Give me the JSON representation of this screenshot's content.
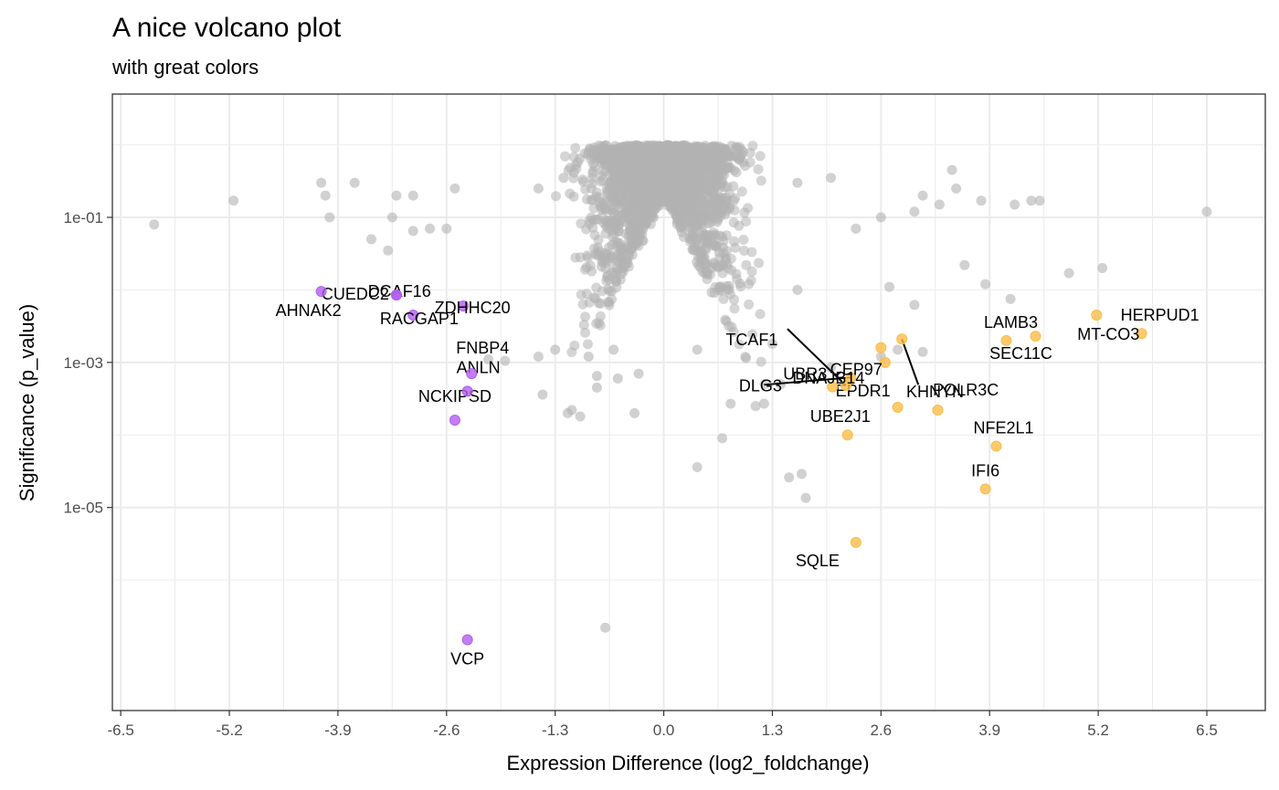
{
  "chart_data": {
    "type": "scatter",
    "title": "A nice volcano plot",
    "subtitle": "with great colors",
    "xlabel": "Expression Difference (log2_foldchange)",
    "ylabel": "Significance (p_value)",
    "xlim": [
      -6.6,
      7.2
    ],
    "ylim_log10": [
      -7.8,
      0.7
    ],
    "y_scale": "reverse-log10",
    "grid": true,
    "x_ticks": [
      -6.5,
      -5.2,
      -3.9,
      -2.6,
      -1.3,
      0.0,
      1.3,
      2.6,
      3.9,
      5.2,
      6.5
    ],
    "x_tick_labels": [
      "-6.5",
      "-5.2",
      "-3.9",
      "-2.6",
      "-1.3",
      "0.0",
      "1.3",
      "2.6",
      "3.9",
      "5.2",
      "6.5"
    ],
    "y_ticks": [
      1e-05,
      0.001,
      0.1
    ],
    "y_tick_labels": [
      "1e-05",
      "1e-03",
      "1e-01"
    ],
    "colors": {
      "up": "#fbbd48",
      "down": "#b45ef0",
      "neutral": "#b3b3b3",
      "panel_border": "#333333",
      "grid": "#ebebeb"
    },
    "highlighted_down": [
      {
        "gene": "VCP",
        "x": -2.35,
        "p": 1.5e-07
      },
      {
        "gene": "NCKIPSD",
        "x": -2.5,
        "p": 0.00016
      },
      {
        "gene": "ANLN",
        "x": -2.35,
        "p": 0.0004
      },
      {
        "gene": "FNBP4",
        "x": -2.3,
        "p": 0.0007
      },
      {
        "gene": "DCAF16",
        "x": -3.0,
        "p": 0.0045
      },
      {
        "gene": "ZDHHC20",
        "x": -2.4,
        "p": 0.006
      },
      {
        "gene": "CUEDC2",
        "x": -3.2,
        "p": 0.0085
      },
      {
        "gene": "RACGAP1",
        "x": -3.2,
        "p": 0.0085
      },
      {
        "gene": "AHNAK2",
        "x": -4.1,
        "p": 0.0095
      }
    ],
    "highlighted_up": [
      {
        "gene": "SQLE",
        "x": 2.3,
        "p": 3.3e-06
      },
      {
        "gene": "IFI6",
        "x": 3.85,
        "p": 1.8e-05
      },
      {
        "gene": "NFE2L1",
        "x": 3.98,
        "p": 7e-05
      },
      {
        "gene": "UBE2J1",
        "x": 2.2,
        "p": 0.0001
      },
      {
        "gene": "EPDR1",
        "x": 2.8,
        "p": 0.00024
      },
      {
        "gene": "KHNYN",
        "x": 3.28,
        "p": 0.00022
      },
      {
        "gene": "UBR3",
        "x": 2.02,
        "p": 0.00046
      },
      {
        "gene": "TCAF1",
        "x": 2.18,
        "p": 0.00048
      },
      {
        "gene": "DLG3",
        "x": 2.24,
        "p": 0.00062
      },
      {
        "gene": "DNAJB14",
        "x": 2.65,
        "p": 0.001
      },
      {
        "gene": "CEP97",
        "x": 2.6,
        "p": 0.0016
      },
      {
        "gene": "POLR3C",
        "x": 2.85,
        "p": 0.0021
      },
      {
        "gene": "LAMB3",
        "x": 4.1,
        "p": 0.002
      },
      {
        "gene": "SEC11C",
        "x": 4.45,
        "p": 0.0023
      },
      {
        "gene": "HERPUD1",
        "x": 5.72,
        "p": 0.0025
      },
      {
        "gene": "MT-CO3",
        "x": 5.18,
        "p": 0.0045
      }
    ],
    "neutral_points": [
      [
        -0.7,
        2.2e-07
      ],
      [
        1.7,
        1.35e-05
      ],
      [
        1.5,
        2.6e-05
      ],
      [
        1.65,
        2.9e-05
      ],
      [
        0.4,
        3.6e-05
      ],
      [
        0.7,
        9e-05
      ],
      [
        1.1,
        0.00025
      ],
      [
        1.2,
        0.00027
      ],
      [
        0.8,
        0.00027
      ],
      [
        -1.0,
        0.00018
      ],
      [
        -1.15,
        0.0002
      ],
      [
        -0.35,
        0.0002
      ],
      [
        -1.1,
        0.00022
      ],
      [
        -1.45,
        0.00036
      ],
      [
        -0.8,
        0.00045
      ],
      [
        1.4,
        0.0005
      ],
      [
        -0.8,
        0.00065
      ],
      [
        -0.3,
        0.0007
      ],
      [
        -0.55,
        0.0006
      ],
      [
        -2.1,
        0.0011
      ],
      [
        -1.9,
        0.00105
      ],
      [
        -0.9,
        0.0012
      ],
      [
        -1.5,
        0.0012
      ],
      [
        -1.3,
        0.0015
      ],
      [
        -0.6,
        0.0015
      ],
      [
        2.0,
        0.00085
      ],
      [
        2.6,
        0.0012
      ],
      [
        2.8,
        0.0015
      ],
      [
        3.1,
        0.0014
      ],
      [
        1.3,
        0.0018
      ],
      [
        0.4,
        0.0015
      ],
      [
        4.15,
        0.0075
      ],
      [
        3.0,
        0.0062
      ],
      [
        1.6,
        0.01
      ],
      [
        4.85,
        0.017
      ],
      [
        5.25,
        0.02
      ],
      [
        3.85,
        0.012
      ],
      [
        3.6,
        0.022
      ],
      [
        2.7,
        0.011
      ],
      [
        -4.0,
        0.1
      ],
      [
        -3.5,
        0.05
      ],
      [
        -3.3,
        0.035
      ],
      [
        -5.15,
        0.17
      ],
      [
        -6.1,
        0.08
      ],
      [
        6.5,
        0.12
      ],
      [
        -4.05,
        0.2
      ],
      [
        -3.7,
        0.3
      ],
      [
        -4.1,
        0.3
      ],
      [
        -3.0,
        0.065
      ],
      [
        -2.8,
        0.07
      ],
      [
        -2.6,
        0.07
      ],
      [
        -3.25,
        0.1
      ],
      [
        -3.2,
        0.2
      ],
      [
        -2.5,
        0.25
      ],
      [
        -3.0,
        0.2
      ],
      [
        2.3,
        0.07
      ],
      [
        2.6,
        0.1
      ],
      [
        3.0,
        0.12
      ],
      [
        3.3,
        0.15
      ],
      [
        3.1,
        0.2
      ],
      [
        3.5,
        0.25
      ],
      [
        3.45,
        0.45
      ],
      [
        4.2,
        0.15
      ],
      [
        4.4,
        0.17
      ],
      [
        4.5,
        0.17
      ],
      [
        3.8,
        0.17
      ],
      [
        -1.5,
        0.25
      ],
      [
        -1.2,
        0.35
      ],
      [
        1.6,
        0.3
      ],
      [
        2.0,
        0.35
      ]
    ],
    "cloud_count": 2600
  }
}
